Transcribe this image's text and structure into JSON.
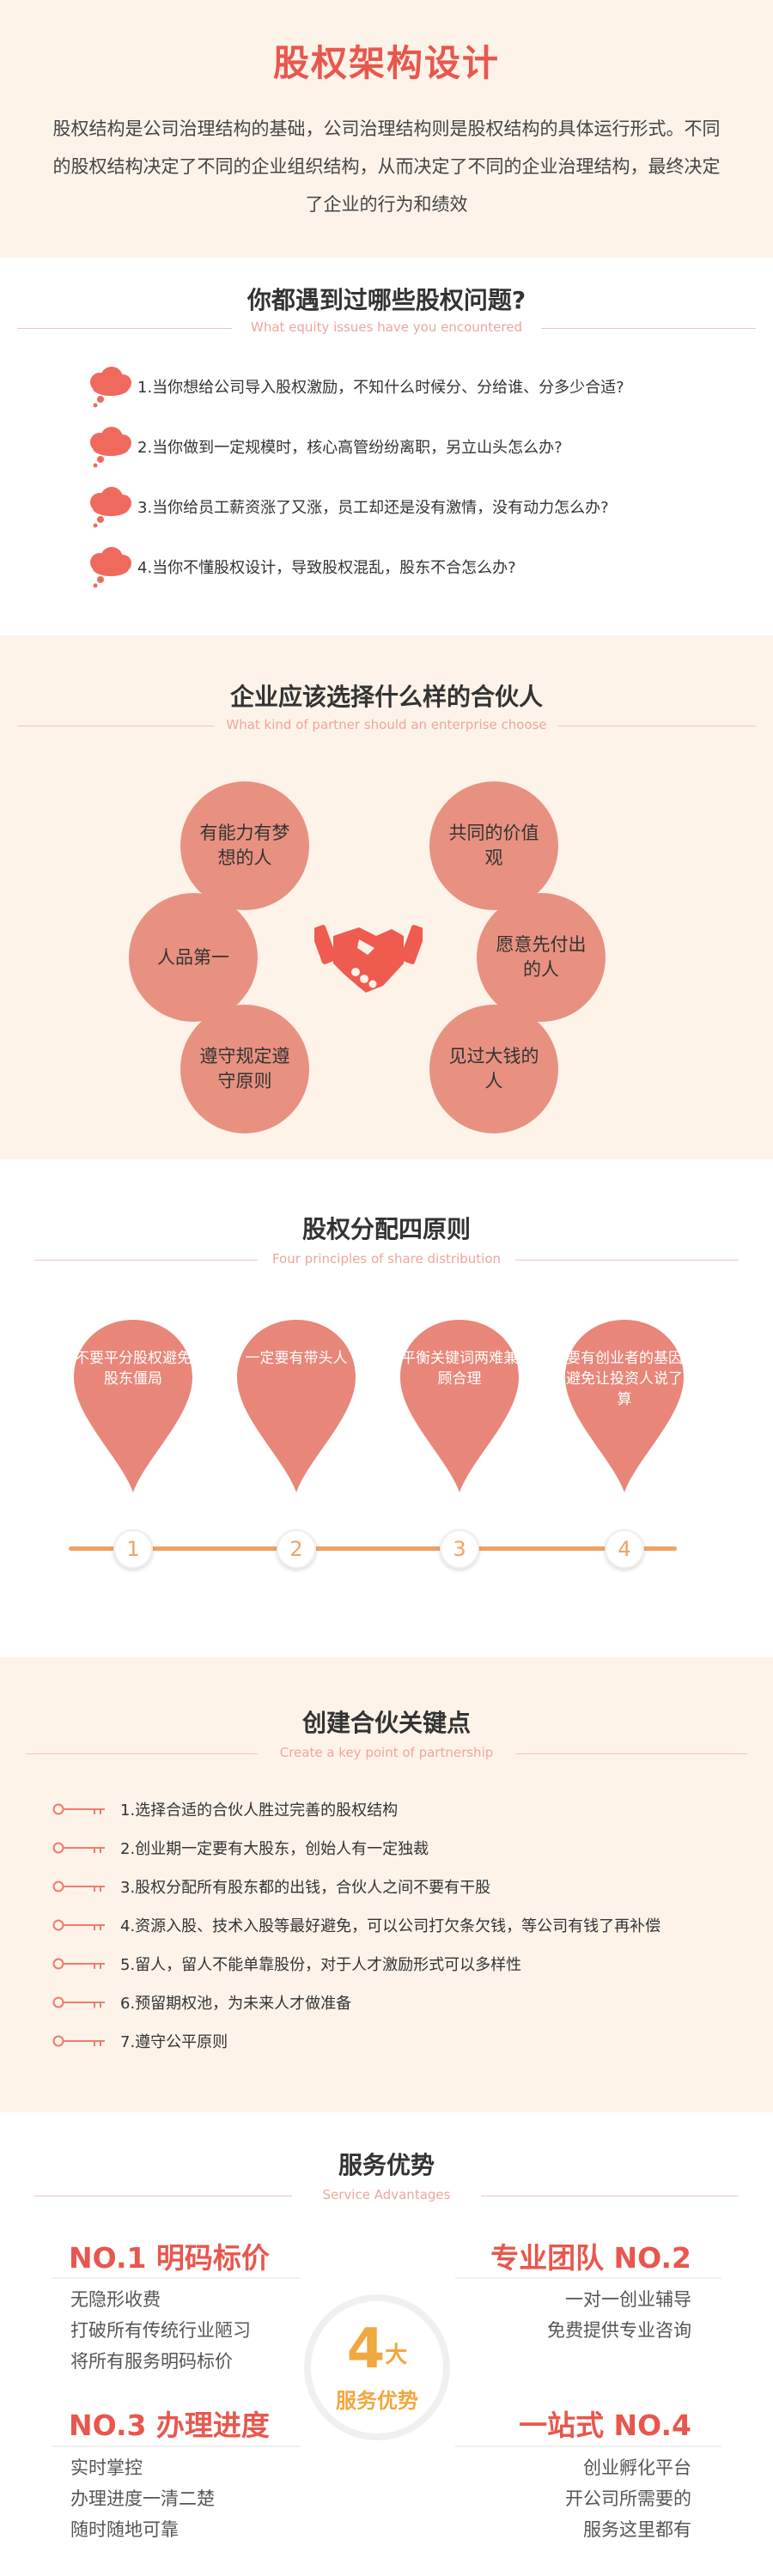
{
  "intro": {
    "title": "股权架构设计",
    "text": "股权结构是公司治理结构的基础，公司治理结构则是股权结构的具体运行形式。不同的股权结构决定了不同的企业组织结构，从而决定了不同的企业治理结构，最终决定了企业的行为和绩效"
  },
  "problems": {
    "title": "你都遇到过哪些股权问题?",
    "subtitle": "What equity issues have you encountered",
    "items": [
      "1.当你想给公司导入股权激励，不知什么时候分、分给谁、分多少合适?",
      "2.当你做到一定规模时，核心高管纷纷离职，另立山头怎么办?",
      "3.当你给员工薪资涨了又涨，员工却还是没有激情，没有动力怎么办?",
      "4.当你不懂股权设计，导致股权混乱，股东不合怎么办?"
    ]
  },
  "partner": {
    "title": "企业应该选择什么样的合伙人",
    "subtitle": "What kind of partner should an enterprise choose",
    "circles": [
      "有能力有梦想的人",
      "共同的价值观",
      "人品第一",
      "愿意先付出的人",
      "遵守规定遵守原则",
      "见过大钱的人"
    ]
  },
  "principles": {
    "title": "股权分配四原则",
    "subtitle": "Four principles of share distribution",
    "pins": [
      {
        "text": "不要平分股权避免股东僵局",
        "number": "1"
      },
      {
        "text": "一定要有带头人",
        "number": "2"
      },
      {
        "text": "平衡关键词两难兼顾合理",
        "number": "3"
      },
      {
        "text": "要有创业者的基因避免让投资人说了算",
        "number": "4"
      }
    ]
  },
  "keypoints": {
    "title": "创建合伙关键点",
    "subtitle": "Create a key point of partnership",
    "items": [
      "1.选择合适的合伙人胜过完善的股权结构",
      "2.创业期一定要有大股东，创始人有一定独裁",
      "3.股权分配所有股东都的出钱，合伙人之间不要有干股",
      "4.资源入股、技术入股等最好避免，可以公司打欠条欠钱，等公司有钱了再补偿",
      "5.留人，留人不能单靠股份，对于人才激励形式可以多样性",
      "6.预留期权池，为未来人才做准备",
      "7.遵守公平原则"
    ]
  },
  "service": {
    "title": "服务优势",
    "subtitle": "Service Advantages",
    "center": {
      "number": "4",
      "unit": "大",
      "label": "服务优势"
    },
    "advantages": [
      {
        "title": "NO.1 明码标价",
        "lines": [
          "无隐形收费",
          "打破所有传统行业陋习",
          "将所有服务明码标价"
        ]
      },
      {
        "title": "专业团队 NO.2",
        "lines": [
          "一对一创业辅导",
          "免费提供专业咨询"
        ]
      },
      {
        "title": "NO.3 办理进度",
        "lines": [
          "实时掌控",
          "办理进度一清二楚",
          "随时随地可靠"
        ]
      },
      {
        "title": "一站式 NO.4",
        "lines": [
          "创业孵化平台",
          "开公司所需要的",
          "服务这里都有"
        ]
      }
    ]
  },
  "colors": {
    "accent_red": "#e8574d",
    "circle_salmon": "#e89180",
    "cream_bg": "#fdf3e9",
    "orange": "#f0a263"
  }
}
